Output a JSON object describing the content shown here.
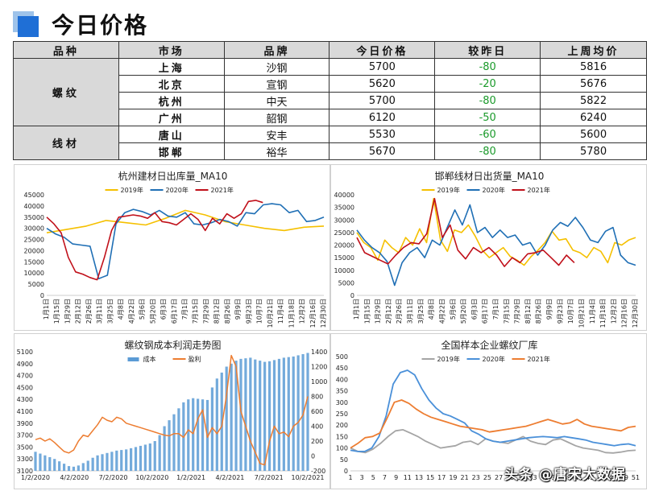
{
  "header": {
    "title": "今日价格"
  },
  "table": {
    "columns": [
      "品种",
      "市场",
      "品牌",
      "今日价格",
      "较昨日",
      "上周均价"
    ],
    "groups": [
      {
        "category": "螺纹",
        "rows": [
          {
            "market": "上海",
            "brand": "沙钢",
            "today": "5700",
            "change": "-80",
            "last_week": "5816"
          },
          {
            "market": "北京",
            "brand": "宣钢",
            "today": "5620",
            "change": "-20",
            "last_week": "5676"
          },
          {
            "market": "杭州",
            "brand": "中天",
            "today": "5700",
            "change": "-80",
            "last_week": "5822"
          },
          {
            "market": "广州",
            "brand": "韶钢",
            "today": "6120",
            "change": "-50",
            "last_week": "6240"
          }
        ]
      },
      {
        "category": "线材",
        "rows": [
          {
            "market": "唐山",
            "brand": "安丰",
            "today": "5530",
            "change": "-60",
            "last_week": "5600"
          },
          {
            "market": "邯郸",
            "brand": "裕华",
            "today": "5670",
            "change": "-80",
            "last_week": "5780"
          }
        ]
      }
    ],
    "colors": {
      "header_bg": "#d9d9d9",
      "change_text": "#1a9a2a"
    }
  },
  "watermark": "头条 @唐宋大数据",
  "chart_data": [
    {
      "type": "line",
      "title": "杭州建材日出库量_MA10",
      "legend": [
        "2019年",
        "2020年",
        "2021年"
      ],
      "legend_position": "top",
      "colors": [
        "#f5c000",
        "#1f6fb5",
        "#c0101a"
      ],
      "ylim": [
        0,
        45000
      ],
      "yticks": [
        "0",
        "5000",
        "10000",
        "15000",
        "20000",
        "25000",
        "30000",
        "35000",
        "40000",
        "45000"
      ],
      "xticks": [
        "1月1日",
        "1月15日",
        "1月29日",
        "2月12日",
        "2月26日",
        "3月11日",
        "3月25日",
        "4月8日",
        "4月22日",
        "5月6日",
        "5月20日",
        "6月3日",
        "6月17日",
        "7月1日",
        "7月15日",
        "7月29日",
        "8月12日",
        "8月26日",
        "9月9日",
        "9月23日",
        "10月7日",
        "10月21日",
        "11月4日",
        "11月18日",
        "12月2日",
        "12月16日",
        "12月30日"
      ],
      "series": [
        {
          "name": "2019年",
          "values": [
            28000,
            29500,
            31000,
            33500,
            32500,
            31500,
            34500,
            38000,
            36000,
            33000,
            31500,
            30000,
            29000,
            30500,
            31000
          ]
        },
        {
          "name": "2020年",
          "values": [
            30000,
            27500,
            26000,
            23000,
            22500,
            22000,
            7500,
            9000,
            32000,
            37000,
            38500,
            37500,
            36000,
            38000,
            35500,
            35000,
            37000,
            32000,
            31500,
            32500,
            34000,
            33000,
            31000,
            37000,
            36500,
            40500,
            41000,
            40500,
            37000,
            38000,
            33000,
            33500,
            35000
          ]
        },
        {
          "name": "2021年",
          "values": [
            35000,
            32000,
            28000,
            17000,
            10500,
            9500,
            8000,
            7000,
            17000,
            29000,
            35000,
            35500,
            36000,
            35500,
            34500,
            37000,
            33000,
            32500,
            31500,
            34000,
            36500,
            34000,
            29000,
            34500,
            32000,
            36500,
            34500,
            36500,
            42000,
            42500,
            41500
          ]
        }
      ]
    },
    {
      "type": "line",
      "title": "邯郸线材日出货量_MA10",
      "legend": [
        "2019年",
        "2020年",
        "2021年"
      ],
      "legend_position": "top",
      "colors": [
        "#f5c000",
        "#1f6fb5",
        "#c0101a"
      ],
      "ylim": [
        0,
        40000
      ],
      "yticks": [
        "0",
        "5000",
        "10000",
        "15000",
        "20000",
        "25000",
        "30000",
        "35000",
        "40000"
      ],
      "xticks": [
        "1月1日",
        "1月15日",
        "1月29日",
        "2月12日",
        "2月26日",
        "3月11日",
        "3月25日",
        "4月8日",
        "4月22日",
        "5月6日",
        "5月20日",
        "6月3日",
        "6月17日",
        "7月1日",
        "7月15日",
        "7月29日",
        "8月12日",
        "8月26日",
        "9月9日",
        "9月23日",
        "10月7日",
        "10月21日",
        "11月4日",
        "11月18日",
        "12月2日",
        "12月16日",
        "12月30日"
      ],
      "series": [
        {
          "name": "2019年",
          "values": [
            25000,
            21000,
            19000,
            14000,
            22000,
            19000,
            17000,
            23000,
            20000,
            26500,
            21000,
            38500,
            22000,
            17500,
            26000,
            25000,
            28000,
            23500,
            18000,
            15000,
            17000,
            19000,
            15500,
            14000,
            12000,
            15500,
            18000,
            21000,
            25500,
            22000,
            22500,
            18000,
            17000,
            15000,
            19000,
            17500,
            13000,
            21000,
            20000,
            22000,
            23000
          ]
        },
        {
          "name": "2020年",
          "values": [
            26000,
            22000,
            19000,
            17000,
            13500,
            4000,
            13000,
            17000,
            19000,
            15000,
            22000,
            20000,
            27000,
            34000,
            28000,
            36000,
            25000,
            27000,
            23000,
            26000,
            23000,
            24000,
            20000,
            21000,
            16000,
            20000,
            26000,
            29000,
            27500,
            31000,
            27000,
            22000,
            21000,
            25500,
            27000,
            16000,
            13000,
            12000
          ]
        },
        {
          "name": "2021年",
          "values": [
            23000,
            17000,
            15500,
            14000,
            12500,
            16000,
            19000,
            21000,
            20500,
            24500,
            38500,
            23000,
            28000,
            18000,
            14500,
            19000,
            17000,
            19000,
            16000,
            11500,
            15000,
            13000,
            16500,
            17000,
            18000,
            15000,
            12000,
            16000,
            13000
          ]
        }
      ]
    },
    {
      "type": "line",
      "title": "螺纹钢成本利润走势图",
      "legend": [
        "成本",
        "盈利"
      ],
      "legend_position": "top",
      "colors": [
        "#5b9bd5",
        "#ed7d31"
      ],
      "ylim": [
        3100,
        5100
      ],
      "y2lim": [
        -200,
        1400
      ],
      "yticks": [
        "3100",
        "3300",
        "3500",
        "3700",
        "3900",
        "4100",
        "4300",
        "4500",
        "4700",
        "4900",
        "5100"
      ],
      "y2ticks": [
        "-200",
        "0",
        "200",
        "400",
        "600",
        "800",
        "1000",
        "1200",
        "1400"
      ],
      "xticks": [
        "1/2/2020",
        "4/2/2020",
        "7/2/2020",
        "10/2/2020",
        "1/2/2021",
        "4/2/2021",
        "7/2/2021",
        "10/2/2021"
      ],
      "series": [
        {
          "name": "成本",
          "kind": "bar",
          "values": [
            3420,
            3390,
            3360,
            3330,
            3300,
            3260,
            3220,
            3180,
            3170,
            3190,
            3230,
            3270,
            3320,
            3360,
            3380,
            3400,
            3420,
            3440,
            3450,
            3460,
            3480,
            3500,
            3520,
            3540,
            3560,
            3600,
            3700,
            3850,
            3950,
            4050,
            4150,
            4250,
            4300,
            4320,
            4310,
            4300,
            4290,
            4500,
            4650,
            4750,
            4850,
            4900,
            4950,
            4980,
            4990,
            5000,
            4970,
            4950,
            4930,
            4940,
            4960,
            4980,
            5000,
            5010,
            5020,
            5040,
            5060,
            5080
          ]
        },
        {
          "name": "盈利",
          "kind": "line",
          "values": [
            220,
            240,
            200,
            230,
            180,
            120,
            60,
            40,
            80,
            200,
            280,
            260,
            340,
            420,
            520,
            480,
            460,
            520,
            500,
            440,
            420,
            400,
            380,
            360,
            340,
            320,
            300,
            280,
            270,
            300,
            300,
            250,
            350,
            300,
            500,
            620,
            250,
            380,
            300,
            400,
            820,
            1350,
            1200,
            600,
            400,
            200,
            50,
            -100,
            -120,
            200,
            400,
            300,
            320,
            260,
            400,
            450,
            550,
            800
          ]
        }
      ]
    },
    {
      "type": "line",
      "title": "全国样本企业螺纹厂库",
      "legend": [
        "2019年",
        "2020年",
        "2021年"
      ],
      "legend_position": "top",
      "colors": [
        "#a5a5a5",
        "#4a90d9",
        "#ed7d31"
      ],
      "ylim": [
        0,
        500
      ],
      "yticks": [
        "0",
        "50",
        "100",
        "150",
        "200",
        "250",
        "300",
        "350",
        "400",
        "450",
        "500"
      ],
      "xticks": [
        "1",
        "3",
        "5",
        "7",
        "9",
        "11",
        "13",
        "15",
        "17",
        "19",
        "21",
        "23",
        "25",
        "27",
        "29",
        "31",
        "33",
        "35",
        "37",
        "39",
        "41",
        "43",
        "45",
        "47",
        "49",
        "51"
      ],
      "series": [
        {
          "name": "2019年",
          "values": [
            100,
            85,
            80,
            95,
            120,
            150,
            175,
            180,
            165,
            150,
            130,
            115,
            100,
            105,
            110,
            125,
            130,
            115,
            140,
            130,
            125,
            120,
            135,
            150,
            130,
            120,
            115,
            135,
            140,
            125,
            110,
            100,
            95,
            90,
            80,
            78,
            82,
            88,
            90
          ]
        },
        {
          "name": "2020年",
          "values": [
            90,
            85,
            85,
            100,
            150,
            240,
            380,
            430,
            440,
            420,
            360,
            310,
            275,
            250,
            240,
            225,
            210,
            175,
            160,
            140,
            130,
            125,
            130,
            135,
            140,
            145,
            148,
            150,
            148,
            145,
            150,
            145,
            140,
            135,
            125,
            120,
            115,
            110,
            115,
            118,
            110
          ]
        },
        {
          "name": "2021年",
          "values": [
            100,
            120,
            145,
            150,
            165,
            230,
            300,
            310,
            295,
            270,
            250,
            235,
            225,
            215,
            205,
            195,
            190,
            185,
            180,
            170,
            175,
            180,
            185,
            190,
            195,
            205,
            215,
            225,
            215,
            205,
            210,
            225,
            205,
            195,
            190,
            185,
            180,
            175,
            190,
            195
          ]
        }
      ]
    }
  ]
}
